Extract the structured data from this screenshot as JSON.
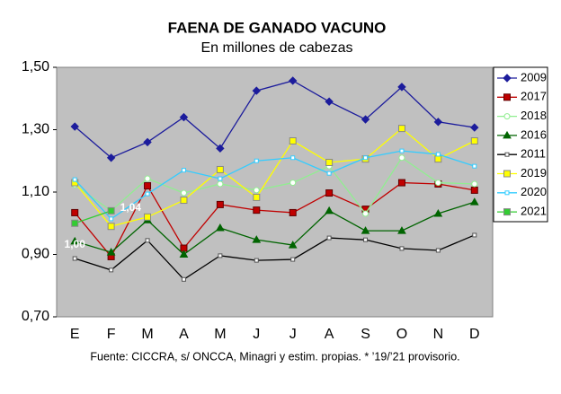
{
  "chart_data": {
    "type": "line",
    "title": "FAENA DE GANADO VACUNO",
    "subtitle": "En millones de cabezas",
    "footnote": "Fuente: CICCRA, s/ ONCCA, Minagri y estim. propias. * ’19/’21 provisorio.",
    "categories": [
      "E",
      "F",
      "M",
      "A",
      "M",
      "J",
      "J",
      "A",
      "S",
      "O",
      "N",
      "D"
    ],
    "ylim": [
      0.7,
      1.5
    ],
    "yticks": [
      {
        "value": 0.7,
        "label": "0,70"
      },
      {
        "value": 0.9,
        "label": "0,90"
      },
      {
        "value": 1.1,
        "label": "1,10"
      },
      {
        "value": 1.3,
        "label": "1,30"
      },
      {
        "value": 1.5,
        "label": "1,50"
      }
    ],
    "legend": "right",
    "series": [
      {
        "name": "2009",
        "color": "#1c1c9c",
        "marker": "diamond",
        "values": [
          1.31,
          1.21,
          1.26,
          1.34,
          1.24,
          1.425,
          1.457,
          1.39,
          1.333,
          1.437,
          1.325,
          1.307
        ]
      },
      {
        "name": "2017",
        "color": "#c00000",
        "marker": "square",
        "values": [
          1.034,
          0.893,
          1.12,
          0.92,
          1.06,
          1.042,
          1.034,
          1.097,
          1.045,
          1.13,
          1.126,
          1.106
        ]
      },
      {
        "name": "2018",
        "color": "#90ee90",
        "marker": "circle",
        "values": [
          1.123,
          1.04,
          1.143,
          1.097,
          1.126,
          1.106,
          1.13,
          1.183,
          1.031,
          1.21,
          1.13,
          1.126
        ]
      },
      {
        "name": "2016",
        "color": "#006400",
        "marker": "triangle",
        "values": [
          0.942,
          0.907,
          1.01,
          0.9,
          0.985,
          0.947,
          0.93,
          1.04,
          0.976,
          0.976,
          1.031,
          1.068
        ]
      },
      {
        "name": "2011",
        "color": "#000000",
        "marker": "small-square",
        "values": [
          0.887,
          0.85,
          0.945,
          0.82,
          0.896,
          0.881,
          0.884,
          0.953,
          0.947,
          0.919,
          0.913,
          0.962
        ]
      },
      {
        "name": "2019",
        "color": "#ffff00",
        "marker": "square",
        "values": [
          1.13,
          0.99,
          1.02,
          1.074,
          1.172,
          1.083,
          1.264,
          1.195,
          1.206,
          1.304,
          1.206,
          1.264
        ]
      },
      {
        "name": "2020",
        "color": "#33ccff",
        "marker": "small-square",
        "values": [
          1.14,
          1.014,
          1.094,
          1.17,
          1.143,
          1.2,
          1.21,
          1.16,
          1.21,
          1.232,
          1.221,
          1.183
        ]
      },
      {
        "name": "2021",
        "color": "#33cc33",
        "marker": "square",
        "values": [
          1.0,
          1.04,
          null,
          null,
          null,
          null,
          null,
          null,
          null,
          null,
          null,
          null
        ],
        "value_labels": [
          "1,00",
          "1,04",
          null,
          null,
          null,
          null,
          null,
          null,
          null,
          null,
          null,
          null
        ]
      }
    ]
  }
}
